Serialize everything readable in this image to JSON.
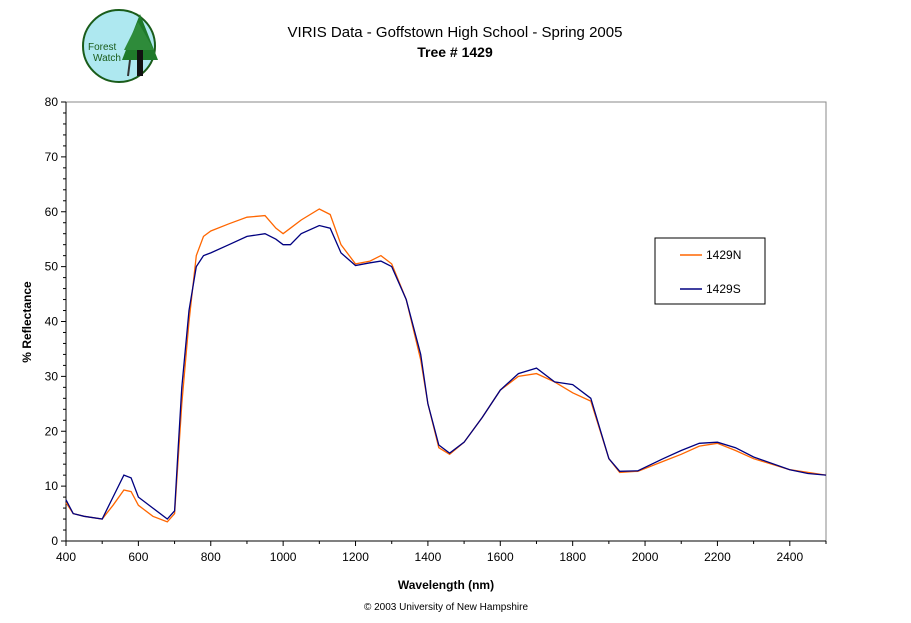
{
  "logo": {
    "text": "Forest Watch"
  },
  "chart_data": {
    "type": "line",
    "title": "VIRIS Data - Goffstown High School - Spring 2005",
    "subtitle": "Tree # 1429",
    "xlabel": "Wavelength (nm)",
    "ylabel": "% Reflectance",
    "xlim": [
      400,
      2500
    ],
    "ylim": [
      0,
      80
    ],
    "xticks": [
      400,
      600,
      800,
      1000,
      1200,
      1400,
      1600,
      1800,
      2000,
      2200,
      2400
    ],
    "yticks": [
      0,
      10,
      20,
      30,
      40,
      50,
      60,
      70,
      80
    ],
    "grid": false,
    "legend_position": "right",
    "x": [
      400,
      420,
      450,
      500,
      530,
      560,
      580,
      600,
      640,
      680,
      700,
      710,
      720,
      740,
      760,
      780,
      800,
      850,
      900,
      950,
      980,
      1000,
      1020,
      1050,
      1100,
      1130,
      1160,
      1200,
      1240,
      1270,
      1300,
      1340,
      1380,
      1400,
      1430,
      1460,
      1500,
      1550,
      1600,
      1650,
      1700,
      1750,
      1800,
      1850,
      1900,
      1930,
      1980,
      2050,
      2100,
      2150,
      2200,
      2250,
      2300,
      2400,
      2450,
      2500
    ],
    "series": [
      {
        "name": "1429N",
        "color": "#ff6600",
        "values": [
          7,
          5,
          4.5,
          4,
          6.5,
          9.3,
          9,
          6.5,
          4.5,
          3.5,
          5,
          15,
          25,
          40,
          52,
          55.5,
          56.5,
          57.8,
          59,
          59.3,
          57,
          56,
          57,
          58.5,
          60.5,
          59.5,
          54,
          50.5,
          51,
          52,
          50.5,
          44,
          33,
          25,
          17,
          15.8,
          18,
          22.5,
          27.5,
          30,
          30.5,
          29,
          27,
          25.5,
          15,
          12.5,
          12.7,
          14.5,
          15.8,
          17.3,
          17.8,
          16.5,
          15,
          13,
          12.5,
          12
        ]
      },
      {
        "name": "1429S",
        "color": "#000080",
        "values": [
          7.5,
          5,
          4.5,
          4,
          8,
          12,
          11.5,
          8,
          6,
          4,
          5.5,
          17,
          28,
          42,
          50,
          52,
          52.5,
          54,
          55.5,
          56,
          55,
          54,
          54,
          56,
          57.5,
          57,
          52.5,
          50.2,
          50.7,
          51,
          50,
          44,
          34,
          25,
          17.5,
          16,
          18,
          22.5,
          27.5,
          30.5,
          31.5,
          29,
          28.5,
          26,
          15,
          12.7,
          12.8,
          15,
          16.5,
          17.8,
          18,
          17,
          15.3,
          13,
          12.3,
          12
        ]
      }
    ]
  },
  "footer": {
    "copyright": "© 2003 University of New Hampshire"
  }
}
